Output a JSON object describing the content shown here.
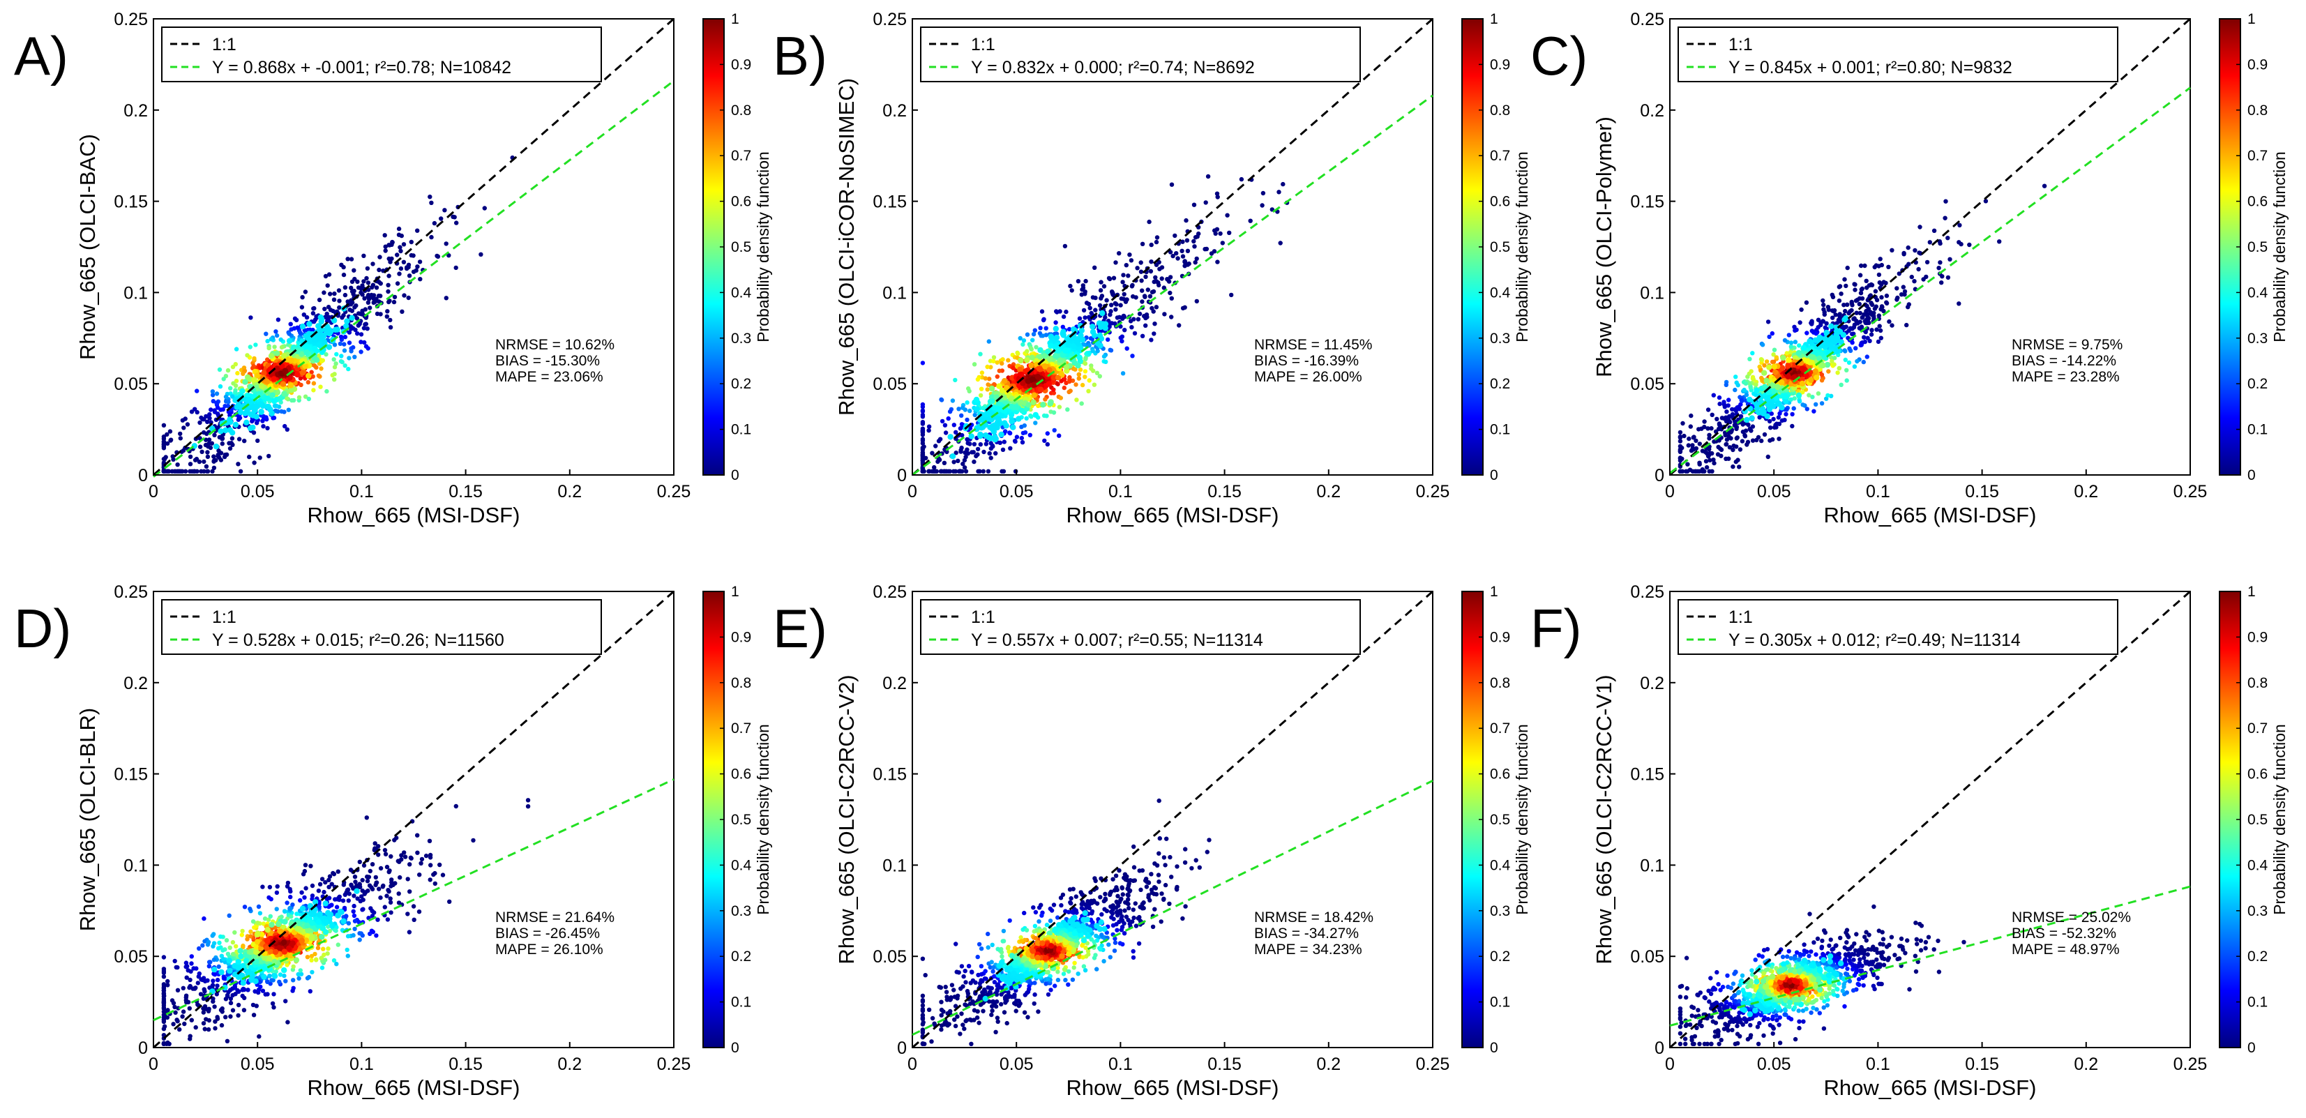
{
  "figure": {
    "colorbar_ticks": [
      "0",
      "0.1",
      "0.2",
      "0.3",
      "0.4",
      "0.5",
      "0.6",
      "0.7",
      "0.8",
      "0.9",
      "1"
    ],
    "colorbar_label": "Probability density function"
  },
  "chart_data": [
    {
      "type": "scatter",
      "panel_label": "A)",
      "xlabel": "Rhow_665 (MSI-DSF)",
      "ylabel": "Rhow_665 (OLCI-BAC)",
      "xlim": [
        0,
        0.25
      ],
      "ylim": [
        0,
        0.25
      ],
      "xticks": [
        "0",
        "0.05",
        "0.1",
        "0.15",
        "0.2",
        "0.25"
      ],
      "yticks": [
        "0",
        "0.05",
        "0.1",
        "0.15",
        "0.2",
        "0.25"
      ],
      "legend": [
        "1:1",
        "Y = 0.868x + -0.001; r²=0.78; N=10842"
      ],
      "fit": {
        "slope": 0.868,
        "intercept": -0.001
      },
      "stats": [
        "NRMSE = 10.62%",
        "BIAS = -15.30%",
        "MAPE = 23.06%"
      ],
      "core": [
        0.062,
        0.056
      ],
      "cloud_spread": 0.025,
      "colorbar_range": [
        0,
        1
      ]
    },
    {
      "type": "scatter",
      "panel_label": "B)",
      "xlabel": "Rhow_665 (MSI-DSF)",
      "ylabel": "Rhow_665 (OLCI-iCOR-NoSIMEC)",
      "xlim": [
        0,
        0.25
      ],
      "ylim": [
        0,
        0.25
      ],
      "xticks": [
        "0",
        "0.05",
        "0.1",
        "0.15",
        "0.2",
        "0.25"
      ],
      "yticks": [
        "0",
        "0.05",
        "0.1",
        "0.15",
        "0.2",
        "0.25"
      ],
      "legend": [
        "1:1",
        "Y = 0.832x + 0.000; r²=0.74; N=8692"
      ],
      "fit": {
        "slope": 0.832,
        "intercept": 0.0
      },
      "stats": [
        "NRMSE = 11.45%",
        "BIAS = -16.39%",
        "MAPE = 26.00%"
      ],
      "core": [
        0.058,
        0.052
      ],
      "cloud_spread": 0.03,
      "colorbar_range": [
        0,
        1
      ]
    },
    {
      "type": "scatter",
      "panel_label": "C)",
      "xlabel": "Rhow_665 (MSI-DSF)",
      "ylabel": "Rhow_665 (OLCI-Polymer)",
      "xlim": [
        0,
        0.25
      ],
      "ylim": [
        0,
        0.25
      ],
      "xticks": [
        "0",
        "0.05",
        "0.1",
        "0.15",
        "0.2",
        "0.25"
      ],
      "yticks": [
        "0",
        "0.05",
        "0.1",
        "0.15",
        "0.2",
        "0.25"
      ],
      "legend": [
        "1:1",
        "Y = 0.845x + 0.001; r²=0.80; N=9832"
      ],
      "fit": {
        "slope": 0.845,
        "intercept": 0.001
      },
      "stats": [
        "NRMSE = 9.75%",
        "BIAS = -14.22%",
        "MAPE = 23.28%"
      ],
      "core": [
        0.06,
        0.056
      ],
      "cloud_spread": 0.022,
      "colorbar_range": [
        0,
        1
      ]
    },
    {
      "type": "scatter",
      "panel_label": "D)",
      "xlabel": "Rhow_665 (MSI-DSF)",
      "ylabel": "Rhow_665 (OLCI-BLR)",
      "xlim": [
        0,
        0.25
      ],
      "ylim": [
        0,
        0.25
      ],
      "xticks": [
        "0",
        "0.05",
        "0.1",
        "0.15",
        "0.2",
        "0.25"
      ],
      "yticks": [
        "0",
        "0.05",
        "0.1",
        "0.15",
        "0.2",
        "0.25"
      ],
      "legend": [
        "1:1",
        "Y = 0.528x + 0.015; r²=0.26; N=11560"
      ],
      "fit": {
        "slope": 0.528,
        "intercept": 0.015
      },
      "stats": [
        "NRMSE = 21.64%",
        "BIAS = -26.45%",
        "MAPE = 26.10%"
      ],
      "core": [
        0.062,
        0.057
      ],
      "cloud_spread": 0.024,
      "colorbar_range": [
        0,
        1
      ]
    },
    {
      "type": "scatter",
      "panel_label": "E)",
      "xlabel": "Rhow_665 (MSI-DSF)",
      "ylabel": "Rhow_665 (OLCI-C2RCC-V2)",
      "xlim": [
        0,
        0.25
      ],
      "ylim": [
        0,
        0.25
      ],
      "xticks": [
        "0",
        "0.05",
        "0.1",
        "0.15",
        "0.2",
        "0.25"
      ],
      "yticks": [
        "0",
        "0.05",
        "0.1",
        "0.15",
        "0.2",
        "0.25"
      ],
      "legend": [
        "1:1",
        "Y = 0.557x + 0.007; r²=0.55; N=11314"
      ],
      "fit": {
        "slope": 0.557,
        "intercept": 0.007
      },
      "stats": [
        "NRMSE = 18.42%",
        "BIAS = -34.27%",
        "MAPE = 34.23%"
      ],
      "core": [
        0.065,
        0.053
      ],
      "cloud_spread": 0.02,
      "colorbar_range": [
        0,
        1
      ]
    },
    {
      "type": "scatter",
      "panel_label": "F)",
      "xlabel": "Rhow_665 (MSI-DSF)",
      "ylabel": "Rhow_665 (OLCI-C2RCC-V1)",
      "xlim": [
        0,
        0.25
      ],
      "ylim": [
        0,
        0.25
      ],
      "xticks": [
        "0",
        "0.05",
        "0.1",
        "0.15",
        "0.2",
        "0.25"
      ],
      "yticks": [
        "0",
        "0.05",
        "0.1",
        "0.15",
        "0.2",
        "0.25"
      ],
      "legend": [
        "1:1",
        "Y = 0.305x + 0.012; r²=0.49; N=11314"
      ],
      "fit": {
        "slope": 0.305,
        "intercept": 0.012
      },
      "stats": [
        "NRMSE = 25.02%",
        "BIAS = -52.32%",
        "MAPE = 48.97%"
      ],
      "core": [
        0.058,
        0.034
      ],
      "cloud_spread": 0.018,
      "colorbar_range": [
        0,
        1
      ]
    }
  ]
}
